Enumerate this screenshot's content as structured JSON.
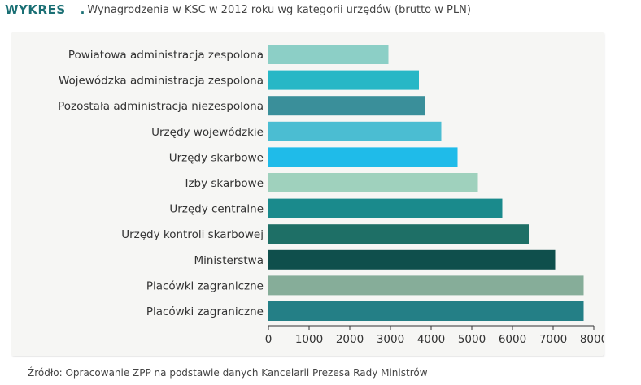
{
  "header": {
    "tag": "WYKRES",
    "title": "Wynagrodzenia w KSC w 2012 roku wg kategorii urzędów (brutto w PLN)"
  },
  "source": "Źródło: Opracowanie ZPP na podstawie danych Kancelarii Prezesa Rady Ministrów",
  "chart_data": {
    "type": "bar",
    "orientation": "horizontal",
    "title": "Wynagrodzenia w KSC w 2012 roku wg kategorii urzędów (brutto w PLN)",
    "xlabel": "",
    "ylabel": "",
    "xlim": [
      0,
      8000
    ],
    "xticks": [
      0,
      1000,
      2000,
      3000,
      4000,
      5000,
      6000,
      7000,
      8000
    ],
    "grid": false,
    "categories": [
      "Powiatowa administracja zespolona",
      "Wojewódzka administracja zespolona",
      "Pozostała administracja niezespolona",
      "Urzędy wojewódzkie",
      "Urzędy skarbowe",
      "Izby skarbowe",
      "Urzędy centralne",
      "Urzędy kontroli skarbowej",
      "Ministerstwa",
      "Placówki zagraniczne",
      "Placówki zagraniczne"
    ],
    "values": [
      2950,
      3700,
      3850,
      4250,
      4650,
      5150,
      5750,
      6400,
      7050,
      7750,
      7750
    ],
    "colors": [
      "#8ccfc6",
      "#27b7c6",
      "#3a8f9a",
      "#4bbdd2",
      "#1fbbe9",
      "#9fd1bd",
      "#1a8a8c",
      "#1e6f66",
      "#0f4f4c",
      "#86ad99",
      "#247f86"
    ]
  }
}
